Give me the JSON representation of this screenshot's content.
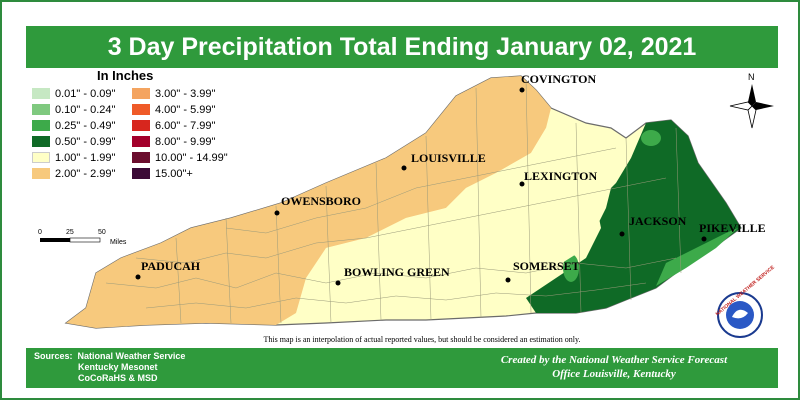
{
  "title": "3 Day Precipitation Total Ending January 02, 2021",
  "legend": {
    "title": "In Inches",
    "items": [
      {
        "label": "0.01\" - 0.09\"",
        "color": "#c6e8c3"
      },
      {
        "label": "0.10\" - 0.24\"",
        "color": "#7fc97f"
      },
      {
        "label": "0.25\" - 0.49\"",
        "color": "#3daa4a"
      },
      {
        "label": "0.50\" - 0.99\"",
        "color": "#0f6a26"
      },
      {
        "label": "1.00\" - 1.99\"",
        "color": "#ffffc6"
      },
      {
        "label": "2.00\" - 2.99\"",
        "color": "#f7c97d"
      },
      {
        "label": "3.00\" - 3.99\"",
        "color": "#f4a460"
      },
      {
        "label": "4.00\" - 5.99\"",
        "color": "#ef5a28"
      },
      {
        "label": "6.00\" - 7.99\"",
        "color": "#d7261e"
      },
      {
        "label": "8.00\" - 9.99\"",
        "color": "#a3002b"
      },
      {
        "label": "10.00\" - 14.99\"",
        "color": "#6b0d2e"
      },
      {
        "label": "15.00\"+",
        "color": "#3b0a36"
      }
    ]
  },
  "cities": [
    {
      "name": "COVINGTON"
    },
    {
      "name": "LOUISVILLE"
    },
    {
      "name": "LEXINGTON"
    },
    {
      "name": "OWENSBORO"
    },
    {
      "name": "JACKSON"
    },
    {
      "name": "PIKEVILLE"
    },
    {
      "name": "PADUCAH"
    },
    {
      "name": "BOWLING GREEN"
    },
    {
      "name": "SOMERSET"
    }
  ],
  "scale": {
    "ticks": [
      "0",
      "25",
      "50"
    ],
    "unit": "Miles"
  },
  "north": "N",
  "note": "This map is an interpolation of actual reported values, but should be considered an estimation only.",
  "sources": {
    "label": "Sources:",
    "lines": [
      "National Weather Service",
      "Kentucky Mesonet",
      "CoCoRaHS & MSD"
    ]
  },
  "credit": {
    "line1": "Created by the National Weather Service Forecast",
    "line2": "Office Louisville, Kentucky"
  },
  "logo_text": "NATIONAL WEATHER SERVICE"
}
